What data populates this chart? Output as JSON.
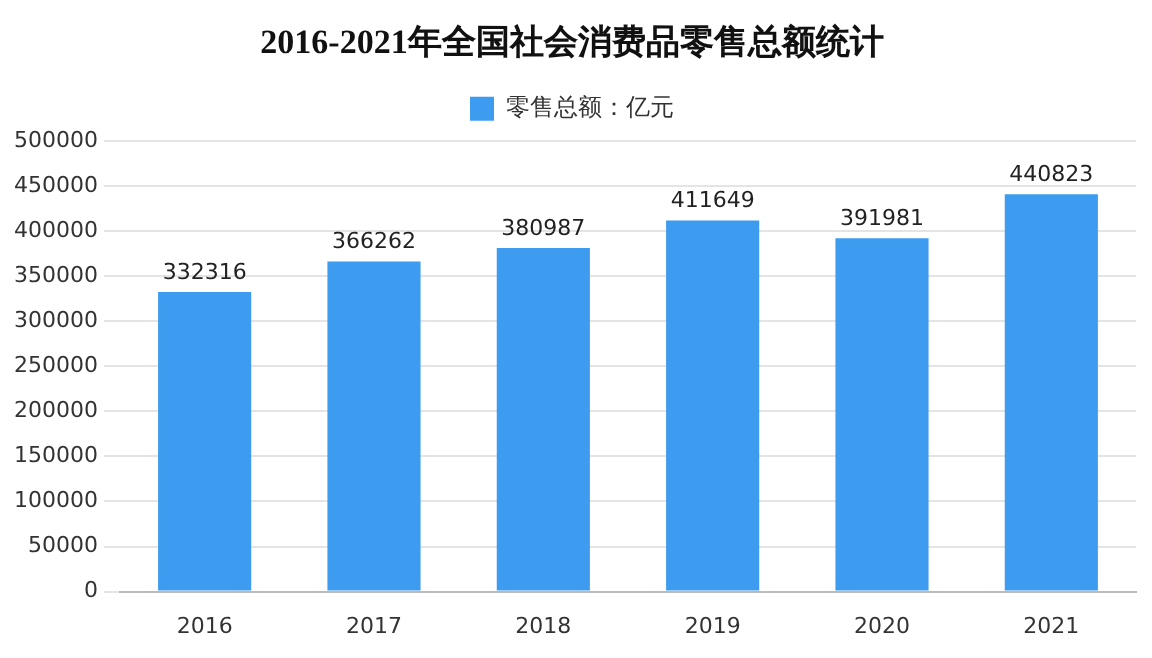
{
  "chart_data": {
    "type": "bar",
    "title": "2016-2021年全国社会消费品零售总额统计",
    "categories": [
      "2016",
      "2017",
      "2018",
      "2019",
      "2020",
      "2021"
    ],
    "series": [
      {
        "name": "零售总额：亿元",
        "color": "#3d9cf0",
        "values": [
          332316,
          366262,
          380987,
          411649,
          391981,
          440823
        ]
      }
    ],
    "ylim": [
      0,
      500000
    ],
    "yticks": [
      0,
      50000,
      100000,
      150000,
      200000,
      250000,
      300000,
      350000,
      400000,
      450000,
      500000
    ],
    "grid": "y",
    "legend": "top",
    "data_labels": true
  }
}
